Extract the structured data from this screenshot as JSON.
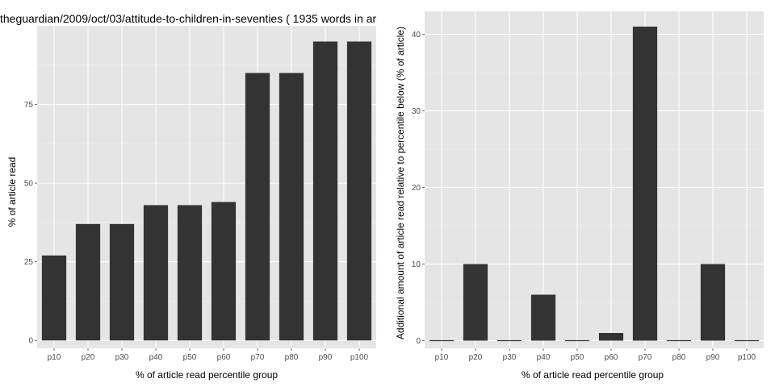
{
  "colors": {
    "panel_background": "#e5e5e5",
    "grid_major": "#ffffff",
    "grid_minor": "#f2f2f2",
    "bar_fill": "#333333",
    "tick_text": "#4d4d4d"
  },
  "chart_data": [
    {
      "type": "bar",
      "title": "theguardian/2009/oct/03/attitude-to-children-in-seventies ( 1935 words in ar",
      "xlabel": "% of article read percentile group",
      "ylabel": "% of article read",
      "categories": [
        "p10",
        "p20",
        "p30",
        "p40",
        "p50",
        "p60",
        "p70",
        "p80",
        "p90",
        "p100"
      ],
      "values": [
        27,
        37,
        37,
        43,
        43,
        44,
        85,
        85,
        95,
        95
      ],
      "ylim": [
        -2.5,
        100
      ],
      "yticks": [
        0,
        25,
        50,
        75
      ],
      "grid": true
    },
    {
      "type": "bar",
      "title": "",
      "xlabel": "% of article read percentile group",
      "ylabel": "Additional amount of article read relative to percentile below (% of article)",
      "categories": [
        "p10",
        "p20",
        "p30",
        "p40",
        "p50",
        "p60",
        "p70",
        "p80",
        "p90",
        "p100"
      ],
      "values": [
        0,
        10,
        0,
        6,
        0,
        1,
        41,
        0,
        10,
        0
      ],
      "ylim": [
        -1,
        43
      ],
      "yticks": [
        0,
        10,
        20,
        30,
        40
      ],
      "grid": true
    }
  ]
}
